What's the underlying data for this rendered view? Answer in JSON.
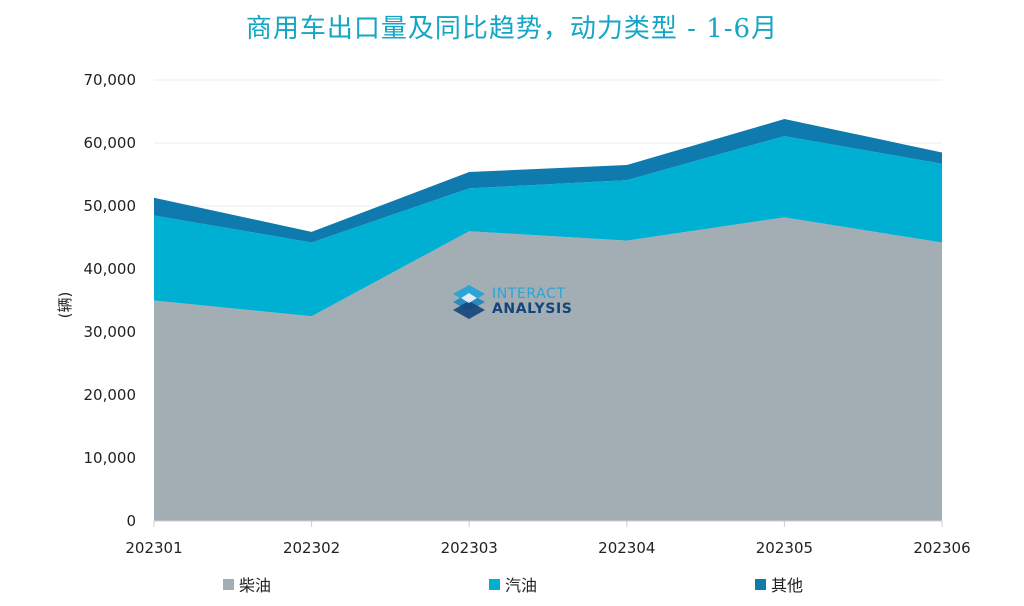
{
  "title": "商用车出口量及同比趋势，动力类型 - 1-6月",
  "watermark": {
    "line1": "INTERACT",
    "line2": "ANALYSIS",
    "icon": "interact-analysis-logo-icon"
  },
  "colors": {
    "title": "#14a6c4",
    "diesel": "#a3adb4",
    "gasoline": "#00b0d2",
    "other": "#0e7aad"
  },
  "chart_data": {
    "type": "area",
    "stacked": true,
    "title": "商用车出口量及同比趋势，动力类型 - 1-6月",
    "xlabel": "",
    "ylabel": "(辆)",
    "categories": [
      "202301",
      "202302",
      "202303",
      "202304",
      "202305",
      "202306"
    ],
    "ylim": [
      0,
      70000
    ],
    "yticks": [
      0,
      10000,
      20000,
      30000,
      40000,
      50000,
      60000,
      70000
    ],
    "ytick_labels": [
      "0",
      "10,000",
      "20,000",
      "30,000",
      "40,000",
      "50,000",
      "60,000",
      "70,000"
    ],
    "grid": true,
    "legend_position": "bottom",
    "series": [
      {
        "name": "柴油",
        "color": "#a3adb4",
        "values": [
          35000,
          32500,
          46000,
          44500,
          48200,
          44200
        ]
      },
      {
        "name": "汽油",
        "color": "#00b0d2",
        "values": [
          13500,
          11700,
          6800,
          9600,
          12900,
          12500
        ]
      },
      {
        "name": "其他",
        "color": "#0e7aad",
        "values": [
          2800,
          1700,
          2600,
          2400,
          2700,
          1800
        ]
      }
    ]
  }
}
